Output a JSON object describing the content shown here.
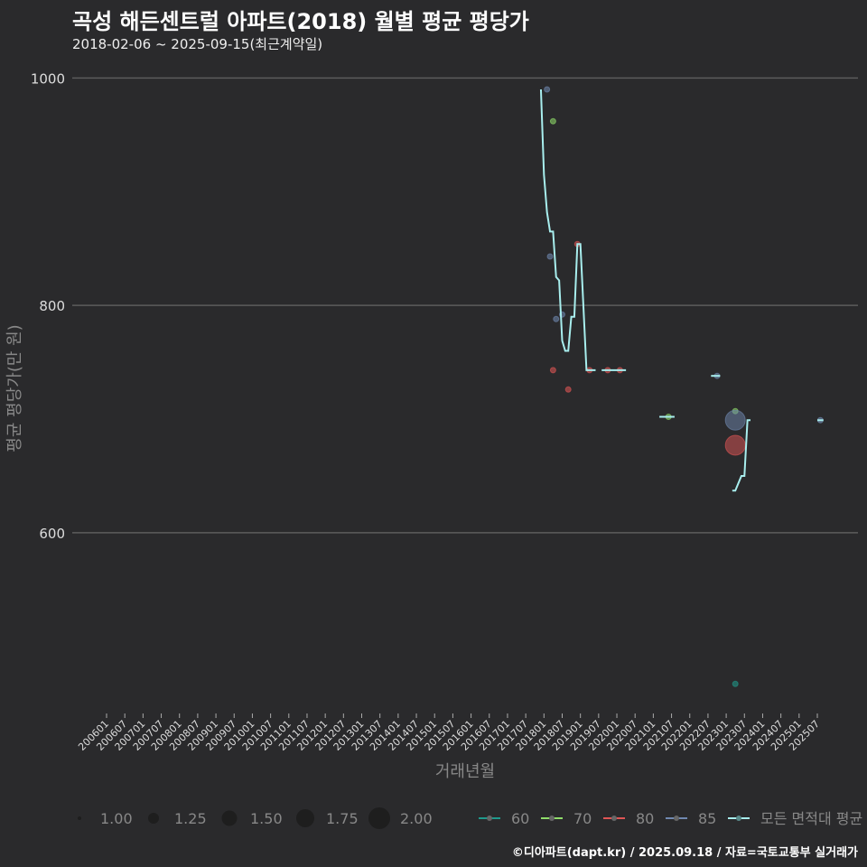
{
  "title": "곡성 해든센트럴 아파트(2018) 월별 평균 평당가",
  "subtitle": "2018-02-06 ~ 2025-09-15(최근계약일)",
  "caption": "©디아파트(dapt.kr) / 2025.09.18 / 자료=국토교통부 실거래가",
  "chart_data": {
    "type": "line",
    "xlabel": "거래년월",
    "ylabel": "평균 평당가(만 원)",
    "ylim": [
      441,
      1021
    ],
    "yticks": [
      600,
      800,
      1000
    ],
    "xticks": [
      "200601",
      "200607",
      "200701",
      "200707",
      "200801",
      "200807",
      "200901",
      "200907",
      "201001",
      "201007",
      "201101",
      "201107",
      "201201",
      "201207",
      "201301",
      "201307",
      "201401",
      "201407",
      "201501",
      "201507",
      "201601",
      "201607",
      "201701",
      "201707",
      "201801",
      "201807",
      "201901",
      "201907",
      "202001",
      "202007",
      "202101",
      "202107",
      "202201",
      "202207",
      "202301",
      "202307",
      "202401",
      "202407",
      "202501",
      "202507"
    ],
    "colors": {
      "60": "#1f9a8c",
      "70": "#8fdc6a",
      "80": "#e05555",
      "85": "#7088b0",
      "all": "#a8eeee"
    },
    "size_legend": [
      "1.00",
      "1.25",
      "1.50",
      "1.75",
      "2.00"
    ],
    "color_legend": [
      {
        "key": "60",
        "label": "60"
      },
      {
        "key": "70",
        "label": "70"
      },
      {
        "key": "80",
        "label": "80"
      },
      {
        "key": "85",
        "label": "85"
      },
      {
        "key": "all",
        "label": "모든 면적대 평균"
      }
    ],
    "line_segments": [
      [
        [
          "201712",
          990
        ],
        [
          "201801",
          915
        ],
        [
          "201802",
          882
        ],
        [
          "201803",
          865
        ],
        [
          "201804",
          865
        ],
        [
          "201805",
          825
        ],
        [
          "201806",
          822
        ],
        [
          "201807",
          769
        ],
        [
          "201808",
          760
        ],
        [
          "201809",
          760
        ],
        [
          "201810",
          790
        ],
        [
          "201811",
          790
        ],
        [
          "201812",
          854
        ],
        [
          "201901",
          854
        ],
        [
          "201903",
          743
        ],
        [
          "201906",
          743
        ]
      ],
      [
        [
          "201908",
          743
        ],
        [
          "202004",
          743
        ]
      ],
      [
        [
          "202103",
          702
        ],
        [
          "202108",
          702
        ]
      ],
      [
        [
          "202208",
          738
        ],
        [
          "202211",
          738
        ]
      ],
      [
        [
          "202303",
          637
        ],
        [
          "202304",
          637
        ],
        [
          "202306",
          650
        ],
        [
          "202307",
          650
        ],
        [
          "202308",
          699
        ],
        [
          "202309",
          699
        ]
      ],
      [
        [
          "202507",
          699
        ],
        [
          "202509",
          699
        ]
      ]
    ],
    "points": [
      {
        "area": "85",
        "x": "201802",
        "y": 990,
        "size": 1
      },
      {
        "area": "70",
        "x": "201804",
        "y": 962,
        "size": 1
      },
      {
        "area": "85",
        "x": "201803",
        "y": 843,
        "size": 1
      },
      {
        "area": "85",
        "x": "201805",
        "y": 788,
        "size": 1
      },
      {
        "area": "85",
        "x": "201807",
        "y": 792,
        "size": 1
      },
      {
        "area": "80",
        "x": "201804",
        "y": 743,
        "size": 1
      },
      {
        "area": "80",
        "x": "201809",
        "y": 726,
        "size": 1
      },
      {
        "area": "80",
        "x": "201812",
        "y": 854,
        "size": 1
      },
      {
        "area": "80",
        "x": "201904",
        "y": 743,
        "size": 1
      },
      {
        "area": "80",
        "x": "201910",
        "y": 743,
        "size": 1
      },
      {
        "area": "80",
        "x": "202002",
        "y": 743,
        "size": 1
      },
      {
        "area": "85",
        "x": "202210",
        "y": 738,
        "size": 1
      },
      {
        "area": "70",
        "x": "202106",
        "y": 702,
        "size": 1
      },
      {
        "area": "70",
        "x": "202304",
        "y": 707,
        "size": 1
      },
      {
        "area": "85",
        "x": "202304",
        "y": 699,
        "size": 2
      },
      {
        "area": "80",
        "x": "202304",
        "y": 677,
        "size": 2
      },
      {
        "area": "85",
        "x": "202508",
        "y": 699,
        "size": 1
      },
      {
        "area": "60",
        "x": "202304",
        "y": 467,
        "size": 1
      }
    ]
  }
}
